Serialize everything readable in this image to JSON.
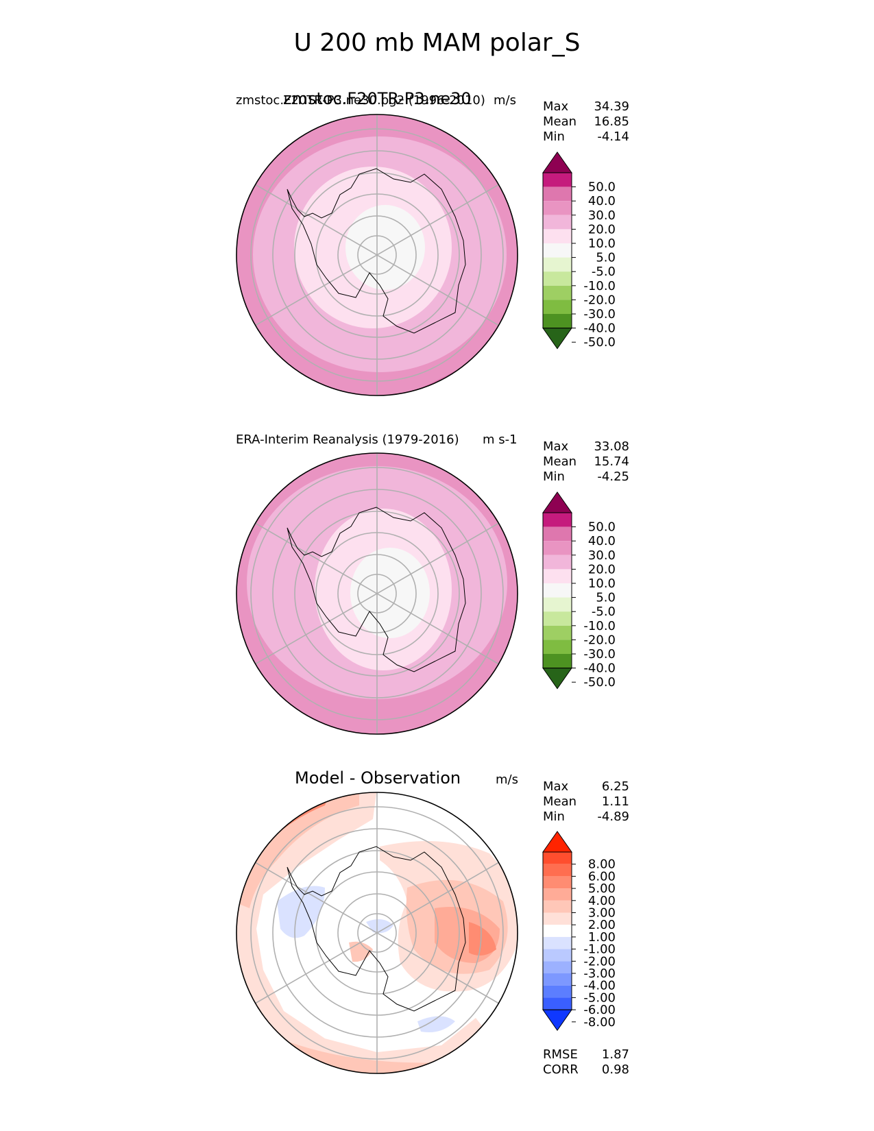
{
  "main_title": "U 200 mb MAM polar_S",
  "panels": [
    {
      "title": "zmstoc.F20TR-P3.ne30",
      "subtitle_left": "zmstoc.F20TR-P3.ne30.pg2 (1996-2010)",
      "subtitle_right": "m/s",
      "stats": [
        {
          "label": "Max",
          "value": "34.39"
        },
        {
          "label": "Mean",
          "value": "16.85"
        },
        {
          "label": "Min",
          "value": "-4.14"
        }
      ],
      "colorbar_ticks": [
        "50.0",
        "40.0",
        "30.0",
        "20.0",
        "10.0",
        "5.0",
        "-5.0",
        "-10.0",
        "-20.0",
        "-30.0",
        "-40.0",
        "-50.0"
      ]
    },
    {
      "title": "",
      "subtitle_left": "ERA-Interim Reanalysis (1979-2016)",
      "subtitle_right": "m s-1",
      "stats": [
        {
          "label": "Max",
          "value": "33.08"
        },
        {
          "label": "Mean",
          "value": "15.74"
        },
        {
          "label": "Min",
          "value": "-4.25"
        }
      ],
      "colorbar_ticks": [
        "50.0",
        "40.0",
        "30.0",
        "20.0",
        "10.0",
        "5.0",
        "-5.0",
        "-10.0",
        "-20.0",
        "-30.0",
        "-40.0",
        "-50.0"
      ]
    },
    {
      "title": "Model - Observation",
      "subtitle_left": "",
      "subtitle_right": "m/s",
      "stats": [
        {
          "label": "Max",
          "value": "6.25"
        },
        {
          "label": "Mean",
          "value": "1.11"
        },
        {
          "label": "Min",
          "value": "-4.89"
        }
      ],
      "colorbar_ticks": [
        "8.00",
        "6.00",
        "5.00",
        "4.00",
        "3.00",
        "2.00",
        "1.00",
        "-1.00",
        "-2.00",
        "-3.00",
        "-4.00",
        "-5.00",
        "-6.00",
        "-8.00"
      ],
      "metrics": [
        {
          "label": "RMSE",
          "value": "1.87"
        },
        {
          "label": "CORR",
          "value": "0.98"
        }
      ]
    }
  ],
  "chart_data": [
    {
      "type": "heatmap",
      "projection": "south polar stereographic",
      "title": "zmstoc.F20TR-P3.ne30",
      "subtitle": "zmstoc.F20TR-P3.ne30.pg2 (1996-2010)",
      "units": "m/s",
      "stats": {
        "max": 34.39,
        "mean": 16.85,
        "min": -4.14
      },
      "levels": [
        -50,
        -40,
        -30,
        -20,
        -10,
        -5,
        5,
        10,
        20,
        30,
        40,
        50
      ],
      "colors": {
        "bins": [
          "#276419",
          "#4d9221",
          "#7fbc41",
          "#b8e186",
          "#e6f5d0",
          "#f7f7f7",
          "#fde0ef",
          "#f1b6da",
          "#de77ae",
          "#c51b7d",
          "#8e0152"
        ]
      }
    },
    {
      "type": "heatmap",
      "projection": "south polar stereographic",
      "subtitle": "ERA-Interim Reanalysis (1979-2016)",
      "units": "m s-1",
      "stats": {
        "max": 33.08,
        "mean": 15.74,
        "min": -4.25
      },
      "levels": [
        -50,
        -40,
        -30,
        -20,
        -10,
        -5,
        5,
        10,
        20,
        30,
        40,
        50
      ]
    },
    {
      "type": "heatmap",
      "projection": "south polar stereographic",
      "title": "Model - Observation",
      "units": "m/s",
      "stats": {
        "max": 6.25,
        "mean": 1.11,
        "min": -4.89
      },
      "levels": [
        -8,
        -6,
        -5,
        -4,
        -3,
        -2,
        -1,
        1,
        2,
        3,
        4,
        5,
        6,
        8
      ],
      "rmse": 1.87,
      "corr": 0.98
    }
  ],
  "colors": {
    "piyg": [
      "#276419",
      "#4d9221",
      "#7fbc41",
      "#b8e186",
      "#e6f5d0",
      "#f7f7f7",
      "#fde0ef",
      "#f1b6da",
      "#de77ae",
      "#c51b7d",
      "#8e0152"
    ],
    "piyg_ext": [
      "#8e0152",
      "#c51b7d",
      "#de77ae",
      "#e994c2",
      "#f1b6da",
      "#fde0ef",
      "#f7f7f7",
      "#f7f7f7",
      "#e6f5d0",
      "#c8e89d",
      "#9ecf63",
      "#7fbc41",
      "#4d9221",
      "#276419"
    ],
    "diff_ext": [
      "#ff2400",
      "#ff4e2e",
      "#ff6e50",
      "#ff8c72",
      "#ffab97",
      "#ffc7b8",
      "#ffe0d8",
      "#ffffff",
      "#dae2ff",
      "#bac9ff",
      "#9cb1ff",
      "#7d98ff",
      "#5c7eff",
      "#3a5fff",
      "#0f38ff"
    ]
  }
}
